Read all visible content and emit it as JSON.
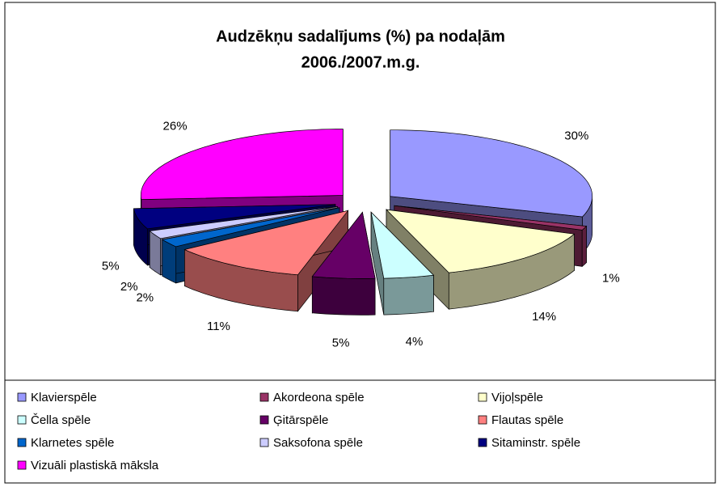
{
  "chart_data": {
    "type": "pie3d",
    "title": [
      "Audzēkņu sadalījums (%) pa nodaļām",
      "2006./2007.m.g."
    ],
    "categories": [
      "Klavierspēle",
      "Akordeona spēle",
      "Vijoļspēle",
      "Čella spēle",
      "Ģitārspēle",
      "Flautas spēle",
      "Klarnetes spēle",
      "Saksofona spēle",
      "Sitaminstr. spēle",
      "Vizuāli plastiskā māksla"
    ],
    "values": [
      30,
      1,
      14,
      4,
      5,
      11,
      2,
      2,
      5,
      26
    ],
    "value_labels": [
      "30%",
      "1%",
      "14%",
      "4%",
      "5%",
      "11%",
      "2%",
      "2%",
      "5%",
      "26%"
    ],
    "colors": [
      "#9999ff",
      "#993366",
      "#ffffcc",
      "#ccffff",
      "#660066",
      "#ff8080",
      "#0066cc",
      "#ccccff",
      "#000080",
      "#ff00ff"
    ],
    "legend": "bottom"
  }
}
